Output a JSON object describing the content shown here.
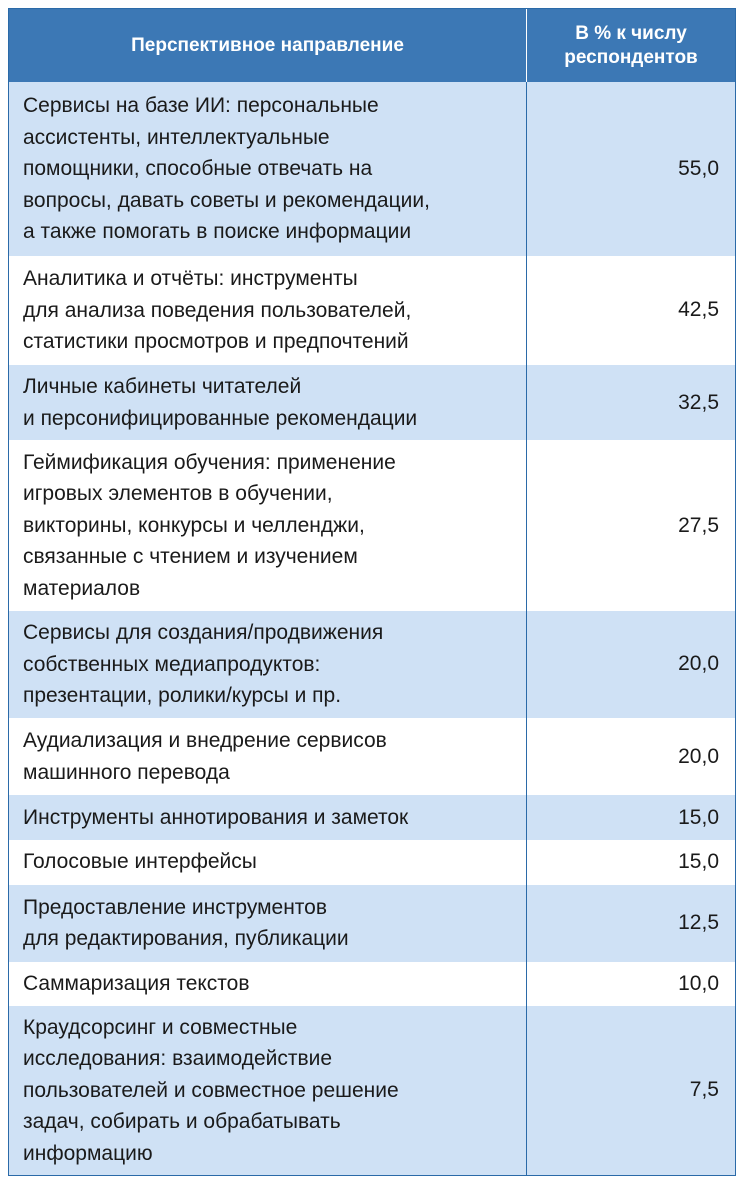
{
  "header": {
    "direction": "Перспективное направление",
    "percent": "В % к числу\nреспондентов"
  },
  "rows": [
    {
      "text": "Сервисы на базе ИИ: персональные\nассистенты, интеллектуальные\nпомощники, способные отвечать на\nвопросы, давать советы и рекомендации,\nа также помогать в поиске информации",
      "value": "55,0"
    },
    {
      "text": "Аналитика и отчёты: инструменты\nдля анализа поведения пользователей,\nстатистики просмотров и предпочтений",
      "value": "42,5"
    },
    {
      "text": "Личные кабинеты читателей\nи персонифицированные рекомендации",
      "value": "32,5"
    },
    {
      "text": "Геймификация обучения: применение\nигровых элементов в обучении,\nвикторины, конкурсы и челленджи,\nсвязанные с чтением и изучением\nматериалов",
      "value": "27,5"
    },
    {
      "text": "Сервисы для создания/продвижения\nсобственных медиапродуктов:\nпрезентации, ролики/курсы и пр.",
      "value": "20,0"
    },
    {
      "text": "Аудиализация и внедрение сервисов\nмашинного перевода",
      "value": "20,0"
    },
    {
      "text": "Инструменты аннотирования и заметок",
      "value": "15,0"
    },
    {
      "text": "Голосовые интерфейсы",
      "value": "15,0"
    },
    {
      "text": "Предоставление инструментов\nдля редактирования, публикации",
      "value": "12,5"
    },
    {
      "text": "Саммаризация текстов",
      "value": "10,0"
    },
    {
      "text": "Краудсорсинг и совместные\nисследования: взаимодействие\nпользователей и совместное решение\nзадач, собирать и обрабатывать\nинформацию",
      "value": "7,5"
    }
  ],
  "colors": {
    "header_bg": "#3c78b5",
    "alt_row_bg": "#cfe1f5",
    "border": "#2b6aa8"
  }
}
